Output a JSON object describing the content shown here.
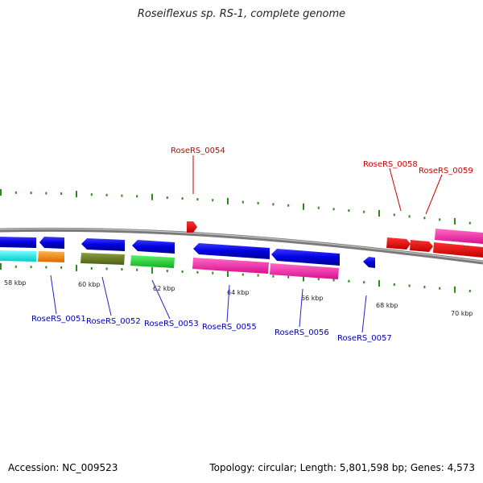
{
  "title": "Roseiflexus sp. RS-1, complete genome",
  "accession": "Accession: NC_009523",
  "stats": "Topology: circular; Length: 5,801,598 bp; Genes: 4,573",
  "colors": {
    "backbone": "#8c8c8c",
    "tick": "#2a8a1a",
    "label_red": "#cc0000",
    "label_blue": "#0000b0",
    "leader": "#2222cc",
    "leader_red": "#cc0000"
  },
  "kbp_labels": [
    "58 kbp",
    "60 kbp",
    "62 kbp",
    "64 kbp",
    "66 kbp",
    "68 kbp",
    "70 kbp"
  ],
  "gene_labels": {
    "top": [
      "RoseRS_0054",
      "RoseRS_0058",
      "RoseRS_0059"
    ],
    "bottom": [
      "RoseRS_0051",
      "RoseRS_0052",
      "RoseRS_0053",
      "RoseRS_0055",
      "RoseRS_0056",
      "RoseRS_0057"
    ]
  },
  "feature_colors": [
    "blue",
    "cyan",
    "orange",
    "olive",
    "green",
    "pink",
    "red"
  ]
}
